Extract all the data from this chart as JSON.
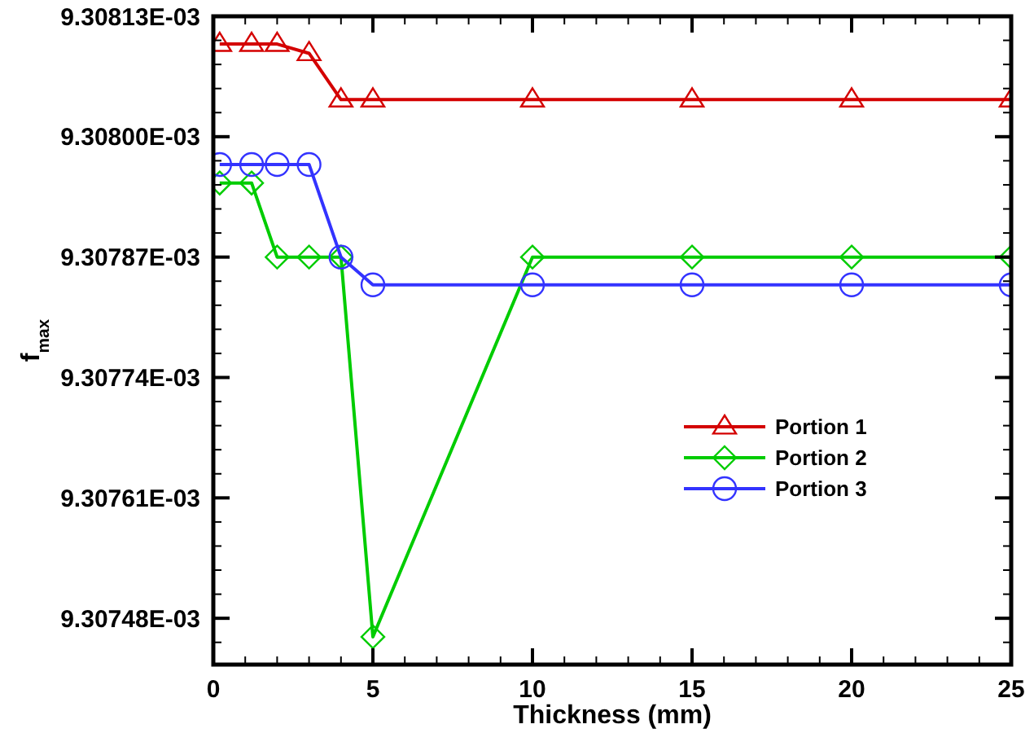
{
  "chart_data": {
    "type": "line",
    "xlabel": "Thickness (mm)",
    "ylabel": "f$_{max}$",
    "x": [
      0.2,
      1.2,
      2,
      3,
      4,
      5,
      10,
      15,
      20,
      25
    ],
    "series": [
      {
        "name": "Portion 1",
        "color": "#d40000",
        "marker": "triangle",
        "values": [
          0.0093081,
          0.0093081,
          0.0093081,
          0.00930809,
          0.00930804,
          0.00930804,
          0.00930804,
          0.00930804,
          0.00930804,
          0.00930804
        ]
      },
      {
        "name": "Portion 2",
        "color": "#00cc00",
        "marker": "diamond",
        "values": [
          0.00930795,
          0.00930795,
          0.00930787,
          0.00930787,
          0.00930787,
          0.00930746,
          0.00930787,
          0.00930787,
          0.00930787,
          0.00930787
        ]
      },
      {
        "name": "Portion 3",
        "color": "#3333ff",
        "marker": "circle",
        "values": [
          0.00930797,
          0.00930797,
          0.00930797,
          0.00930797,
          0.00930787,
          0.00930784,
          0.00930784,
          0.00930784,
          0.00930784,
          0.00930784
        ]
      }
    ],
    "xlim": [
      0,
      25
    ],
    "xticks": [
      0,
      5,
      10,
      15,
      20,
      25
    ],
    "ylim": [
      0.00930743,
      0.00930813
    ],
    "yticks": [
      {
        "value": 0.00930748,
        "label": "9.30748E-03"
      },
      {
        "value": 0.00930761,
        "label": "9.30761E-03"
      },
      {
        "value": 0.00930774,
        "label": "9.30774E-03"
      },
      {
        "value": 0.00930787,
        "label": "9.30787E-03"
      },
      {
        "value": 0.009308,
        "label": "9.30800E-03"
      },
      {
        "value": 0.00930813,
        "label": "9.30813E-03"
      }
    ],
    "grid": false,
    "legend": "right",
    "line_style": "solid"
  }
}
